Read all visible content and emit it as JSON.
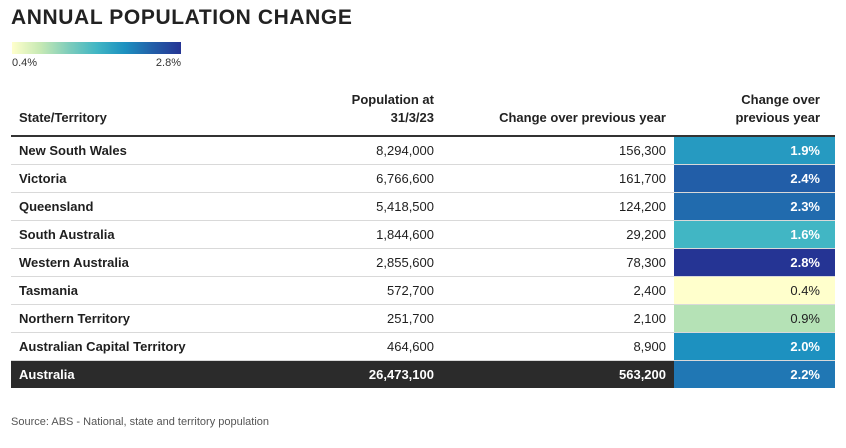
{
  "title": "ANNUAL POPULATION CHANGE",
  "legend": {
    "min_label": "0.4%",
    "max_label": "2.8%",
    "min": 0.4,
    "max": 2.8,
    "stops": [
      "#ffffcc",
      "#c7e9b4",
      "#7fcdbb",
      "#41b6c4",
      "#1d91c0",
      "#225ea8",
      "#253494"
    ]
  },
  "headers": {
    "state": "State/Territory",
    "population": [
      "Population at",
      "31/3/23"
    ],
    "change_count": "Change over previous year",
    "change_pct": [
      "Change over",
      "previous year"
    ]
  },
  "chart_data": {
    "type": "table",
    "columns": [
      "State/Territory",
      "Population at 31/3/23",
      "Change over previous year",
      "Change over previous year"
    ],
    "rows": [
      {
        "state": "New South Wales",
        "population": "8,294,000",
        "change": "156,300",
        "pct_label": "1.9%",
        "pct": 1.9
      },
      {
        "state": "Victoria",
        "population": "6,766,600",
        "change": "161,700",
        "pct_label": "2.4%",
        "pct": 2.4
      },
      {
        "state": "Queensland",
        "population": "5,418,500",
        "change": "124,200",
        "pct_label": "2.3%",
        "pct": 2.3
      },
      {
        "state": "South Australia",
        "population": "1,844,600",
        "change": "29,200",
        "pct_label": "1.6%",
        "pct": 1.6
      },
      {
        "state": "Western Australia",
        "population": "2,855,600",
        "change": "78,300",
        "pct_label": "2.8%",
        "pct": 2.8
      },
      {
        "state": "Tasmania",
        "population": "572,700",
        "change": "2,400",
        "pct_label": "0.4%",
        "pct": 0.4
      },
      {
        "state": "Northern Territory",
        "population": "251,700",
        "change": "2,100",
        "pct_label": "0.9%",
        "pct": 0.9
      },
      {
        "state": "Australian Capital Territory",
        "population": "464,600",
        "change": "8,900",
        "pct_label": "2.0%",
        "pct": 2.0
      }
    ],
    "total": {
      "state": "Australia",
      "population": "26,473,100",
      "change": "563,200",
      "pct_label": "2.2%",
      "pct": 2.2
    }
  },
  "source": "Source: ABS - National, state and territory population"
}
